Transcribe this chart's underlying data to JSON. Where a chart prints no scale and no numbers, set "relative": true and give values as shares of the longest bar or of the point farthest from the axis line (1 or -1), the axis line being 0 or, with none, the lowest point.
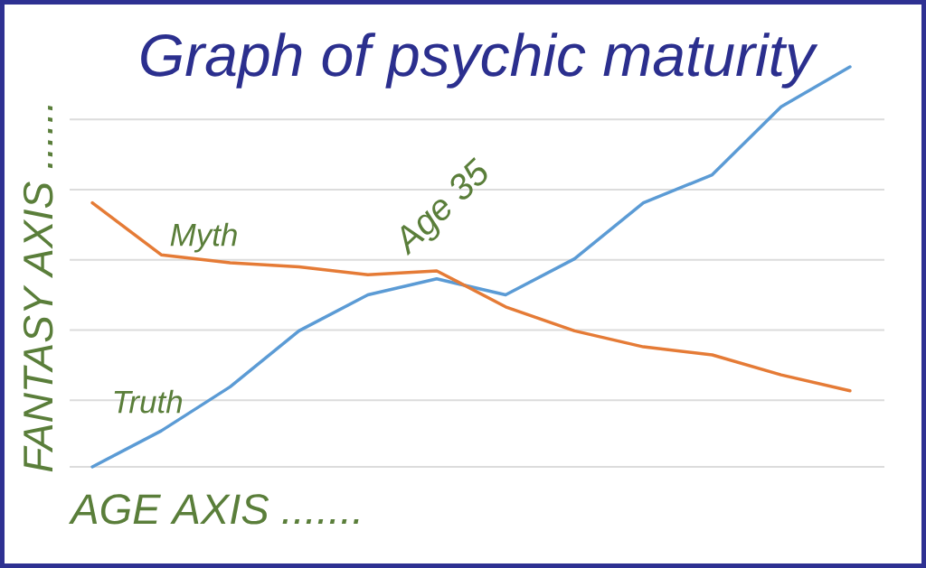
{
  "chart_data": {
    "type": "line",
    "title": "Graph of psychic maturity",
    "xlabel": "AGE AXIS .......",
    "ylabel": "FANTASY AXIS ......",
    "relative": true,
    "grid": "y",
    "categories": [
      null,
      null,
      null,
      null,
      null,
      null,
      null,
      null,
      null,
      null,
      null,
      null
    ],
    "series": [
      {
        "name": "Truth",
        "color": "#5b9bd5",
        "values": [
          0,
          0.09,
          0.2,
          0.34,
          0.43,
          0.47,
          0.43,
          0.52,
          0.66,
          0.73,
          0.9,
          1
        ]
      },
      {
        "name": "Myth",
        "color": "#e57b36",
        "values": [
          0.66,
          0.53,
          0.51,
          0.5,
          0.48,
          0.49,
          0.4,
          0.34,
          0.3,
          0.28,
          0.23,
          0.19
        ]
      }
    ],
    "annotations": [
      "Age 35"
    ]
  }
}
